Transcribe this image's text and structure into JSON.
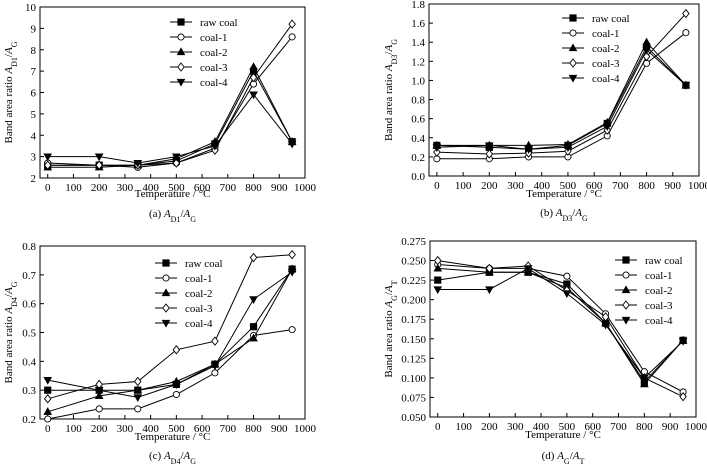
{
  "chart_data": [
    {
      "type": "line",
      "panel": "a",
      "caption": {
        "prefix": "(a) ",
        "num": "A",
        "num_sub": "D1",
        "sep": "/",
        "den": "A",
        "den_sub": "G"
      },
      "xlabel": "Temperature  /  °C",
      "ylabel": {
        "prefix": "Band area ratio ",
        "num": "A",
        "num_sub": "D1",
        "sep": "/",
        "den": "A",
        "den_sub": "G"
      },
      "x": [
        0,
        200,
        350,
        500,
        650,
        800,
        950
      ],
      "xlim": [
        -30,
        1000
      ],
      "ylim": [
        2,
        10
      ],
      "xticks": [
        0,
        100,
        200,
        300,
        400,
        500,
        600,
        700,
        800,
        900,
        1000
      ],
      "yticks": [
        2,
        3,
        4,
        5,
        6,
        7,
        8,
        9,
        10
      ],
      "ytick_decimals": 0,
      "legend": {
        "position": "top-right"
      },
      "series": [
        {
          "name": "raw coal",
          "marker": "square",
          "values": [
            2.6,
            2.6,
            2.6,
            2.8,
            3.6,
            7.0,
            3.7
          ]
        },
        {
          "name": "coal-1",
          "marker": "circle",
          "values": [
            2.7,
            2.6,
            2.5,
            2.7,
            3.4,
            6.4,
            8.6
          ]
        },
        {
          "name": "coal-2",
          "marker": "triangle",
          "values": [
            2.5,
            2.5,
            2.6,
            2.9,
            3.7,
            7.2,
            3.7
          ]
        },
        {
          "name": "coal-3",
          "marker": "diamond",
          "values": [
            2.6,
            2.6,
            2.6,
            2.7,
            3.3,
            6.7,
            9.2
          ]
        },
        {
          "name": "coal-4",
          "marker": "triangle-down",
          "values": [
            3.0,
            3.0,
            2.7,
            3.0,
            3.5,
            5.9,
            3.6
          ]
        }
      ]
    },
    {
      "type": "line",
      "panel": "b",
      "caption": {
        "prefix": "(b) ",
        "num": "A",
        "num_sub": "D3",
        "sep": "/",
        "den": "A",
        "den_sub": "G"
      },
      "xlabel": "Temperature  /  °C",
      "ylabel": {
        "prefix": "Band area ratio ",
        "num": "A",
        "num_sub": "D3",
        "sep": "/",
        "den": "A",
        "den_sub": "G"
      },
      "x": [
        0,
        200,
        350,
        500,
        650,
        800,
        950
      ],
      "xlim": [
        -30,
        1000
      ],
      "ylim": [
        0.0,
        1.8
      ],
      "xticks": [
        0,
        100,
        200,
        300,
        400,
        500,
        600,
        700,
        800,
        900,
        1000
      ],
      "yticks": [
        0.0,
        0.2,
        0.4,
        0.6,
        0.8,
        1.0,
        1.2,
        1.4,
        1.6,
        1.8
      ],
      "ytick_decimals": 1,
      "legend": {
        "position": "top-right"
      },
      "series": [
        {
          "name": "raw coal",
          "marker": "square",
          "values": [
            0.32,
            0.3,
            0.28,
            0.32,
            0.55,
            1.35,
            0.95
          ]
        },
        {
          "name": "coal-1",
          "marker": "circle",
          "values": [
            0.18,
            0.18,
            0.2,
            0.2,
            0.42,
            1.18,
            1.5
          ]
        },
        {
          "name": "coal-2",
          "marker": "triangle",
          "values": [
            0.32,
            0.32,
            0.32,
            0.33,
            0.56,
            1.4,
            0.95
          ]
        },
        {
          "name": "coal-3",
          "marker": "diamond",
          "values": [
            0.25,
            0.23,
            0.24,
            0.26,
            0.48,
            1.25,
            1.7
          ]
        },
        {
          "name": "coal-4",
          "marker": "triangle-down",
          "values": [
            0.3,
            0.32,
            0.28,
            0.3,
            0.52,
            1.32,
            0.95
          ]
        }
      ]
    },
    {
      "type": "line",
      "panel": "c",
      "caption": {
        "prefix": "(c) ",
        "num": "A",
        "num_sub": "D4",
        "sep": "/",
        "den": "A",
        "den_sub": "G"
      },
      "xlabel": "Temperature  /  °C",
      "ylabel": {
        "prefix": "Band area ratio ",
        "num": "A",
        "num_sub": "D4",
        "sep": "/",
        "den": "A",
        "den_sub": "G"
      },
      "x": [
        0,
        200,
        350,
        500,
        650,
        800,
        950
      ],
      "xlim": [
        -30,
        1000
      ],
      "ylim": [
        0.2,
        0.8
      ],
      "xticks": [
        0,
        100,
        200,
        300,
        400,
        500,
        600,
        700,
        800,
        900,
        1000
      ],
      "yticks": [
        0.2,
        0.3,
        0.4,
        0.5,
        0.6,
        0.7,
        0.8
      ],
      "ytick_decimals": 1,
      "legend": {
        "position": "top-left"
      },
      "series": [
        {
          "name": "raw coal",
          "marker": "square",
          "values": [
            0.3,
            0.3,
            0.3,
            0.32,
            0.39,
            0.52,
            0.72
          ]
        },
        {
          "name": "coal-1",
          "marker": "circle",
          "values": [
            0.2,
            0.235,
            0.235,
            0.285,
            0.36,
            0.49,
            0.51
          ]
        },
        {
          "name": "coal-2",
          "marker": "triangle",
          "values": [
            0.225,
            0.28,
            0.3,
            0.33,
            0.39,
            0.48,
            0.72
          ]
        },
        {
          "name": "coal-3",
          "marker": "diamond",
          "values": [
            0.27,
            0.32,
            0.33,
            0.44,
            0.47,
            0.76,
            0.77
          ]
        },
        {
          "name": "coal-4",
          "marker": "triangle-down",
          "values": [
            0.335,
            0.3,
            0.275,
            0.32,
            0.385,
            0.615,
            0.71
          ]
        }
      ]
    },
    {
      "type": "line",
      "panel": "d",
      "caption": {
        "prefix": "(d) ",
        "num": "A",
        "num_sub": "G",
        "sep": "/",
        "den": "A",
        "den_sub": "T"
      },
      "xlabel": "Temperature  /  °C",
      "ylabel": {
        "prefix": "Band area ratio ",
        "num": "A",
        "num_sub": "G",
        "sep": "/",
        "den": "A",
        "den_sub": "T"
      },
      "x": [
        0,
        200,
        350,
        500,
        650,
        800,
        950
      ],
      "xlim": [
        -30,
        1000
      ],
      "ylim": [
        0.05,
        0.275
      ],
      "xticks": [
        0,
        100,
        200,
        300,
        400,
        500,
        600,
        700,
        800,
        900,
        1000
      ],
      "yticks": [
        0.05,
        0.075,
        0.1,
        0.125,
        0.15,
        0.175,
        0.2,
        0.225,
        0.25,
        0.275
      ],
      "ytick_decimals": 3,
      "legend": {
        "position": "top-right"
      },
      "series": [
        {
          "name": "raw coal",
          "marker": "square",
          "values": [
            0.225,
            0.235,
            0.235,
            0.22,
            0.17,
            0.095,
            0.148
          ]
        },
        {
          "name": "coal-1",
          "marker": "circle",
          "values": [
            0.245,
            0.24,
            0.24,
            0.23,
            0.182,
            0.108,
            0.082
          ]
        },
        {
          "name": "coal-2",
          "marker": "triangle",
          "values": [
            0.24,
            0.235,
            0.235,
            0.215,
            0.17,
            0.092,
            0.148
          ]
        },
        {
          "name": "coal-3",
          "marker": "diamond",
          "values": [
            0.25,
            0.24,
            0.243,
            0.212,
            0.178,
            0.1,
            0.076
          ]
        },
        {
          "name": "coal-4",
          "marker": "triangle-down",
          "values": [
            0.213,
            0.213,
            0.24,
            0.208,
            0.168,
            0.1,
            0.147
          ]
        }
      ]
    }
  ]
}
